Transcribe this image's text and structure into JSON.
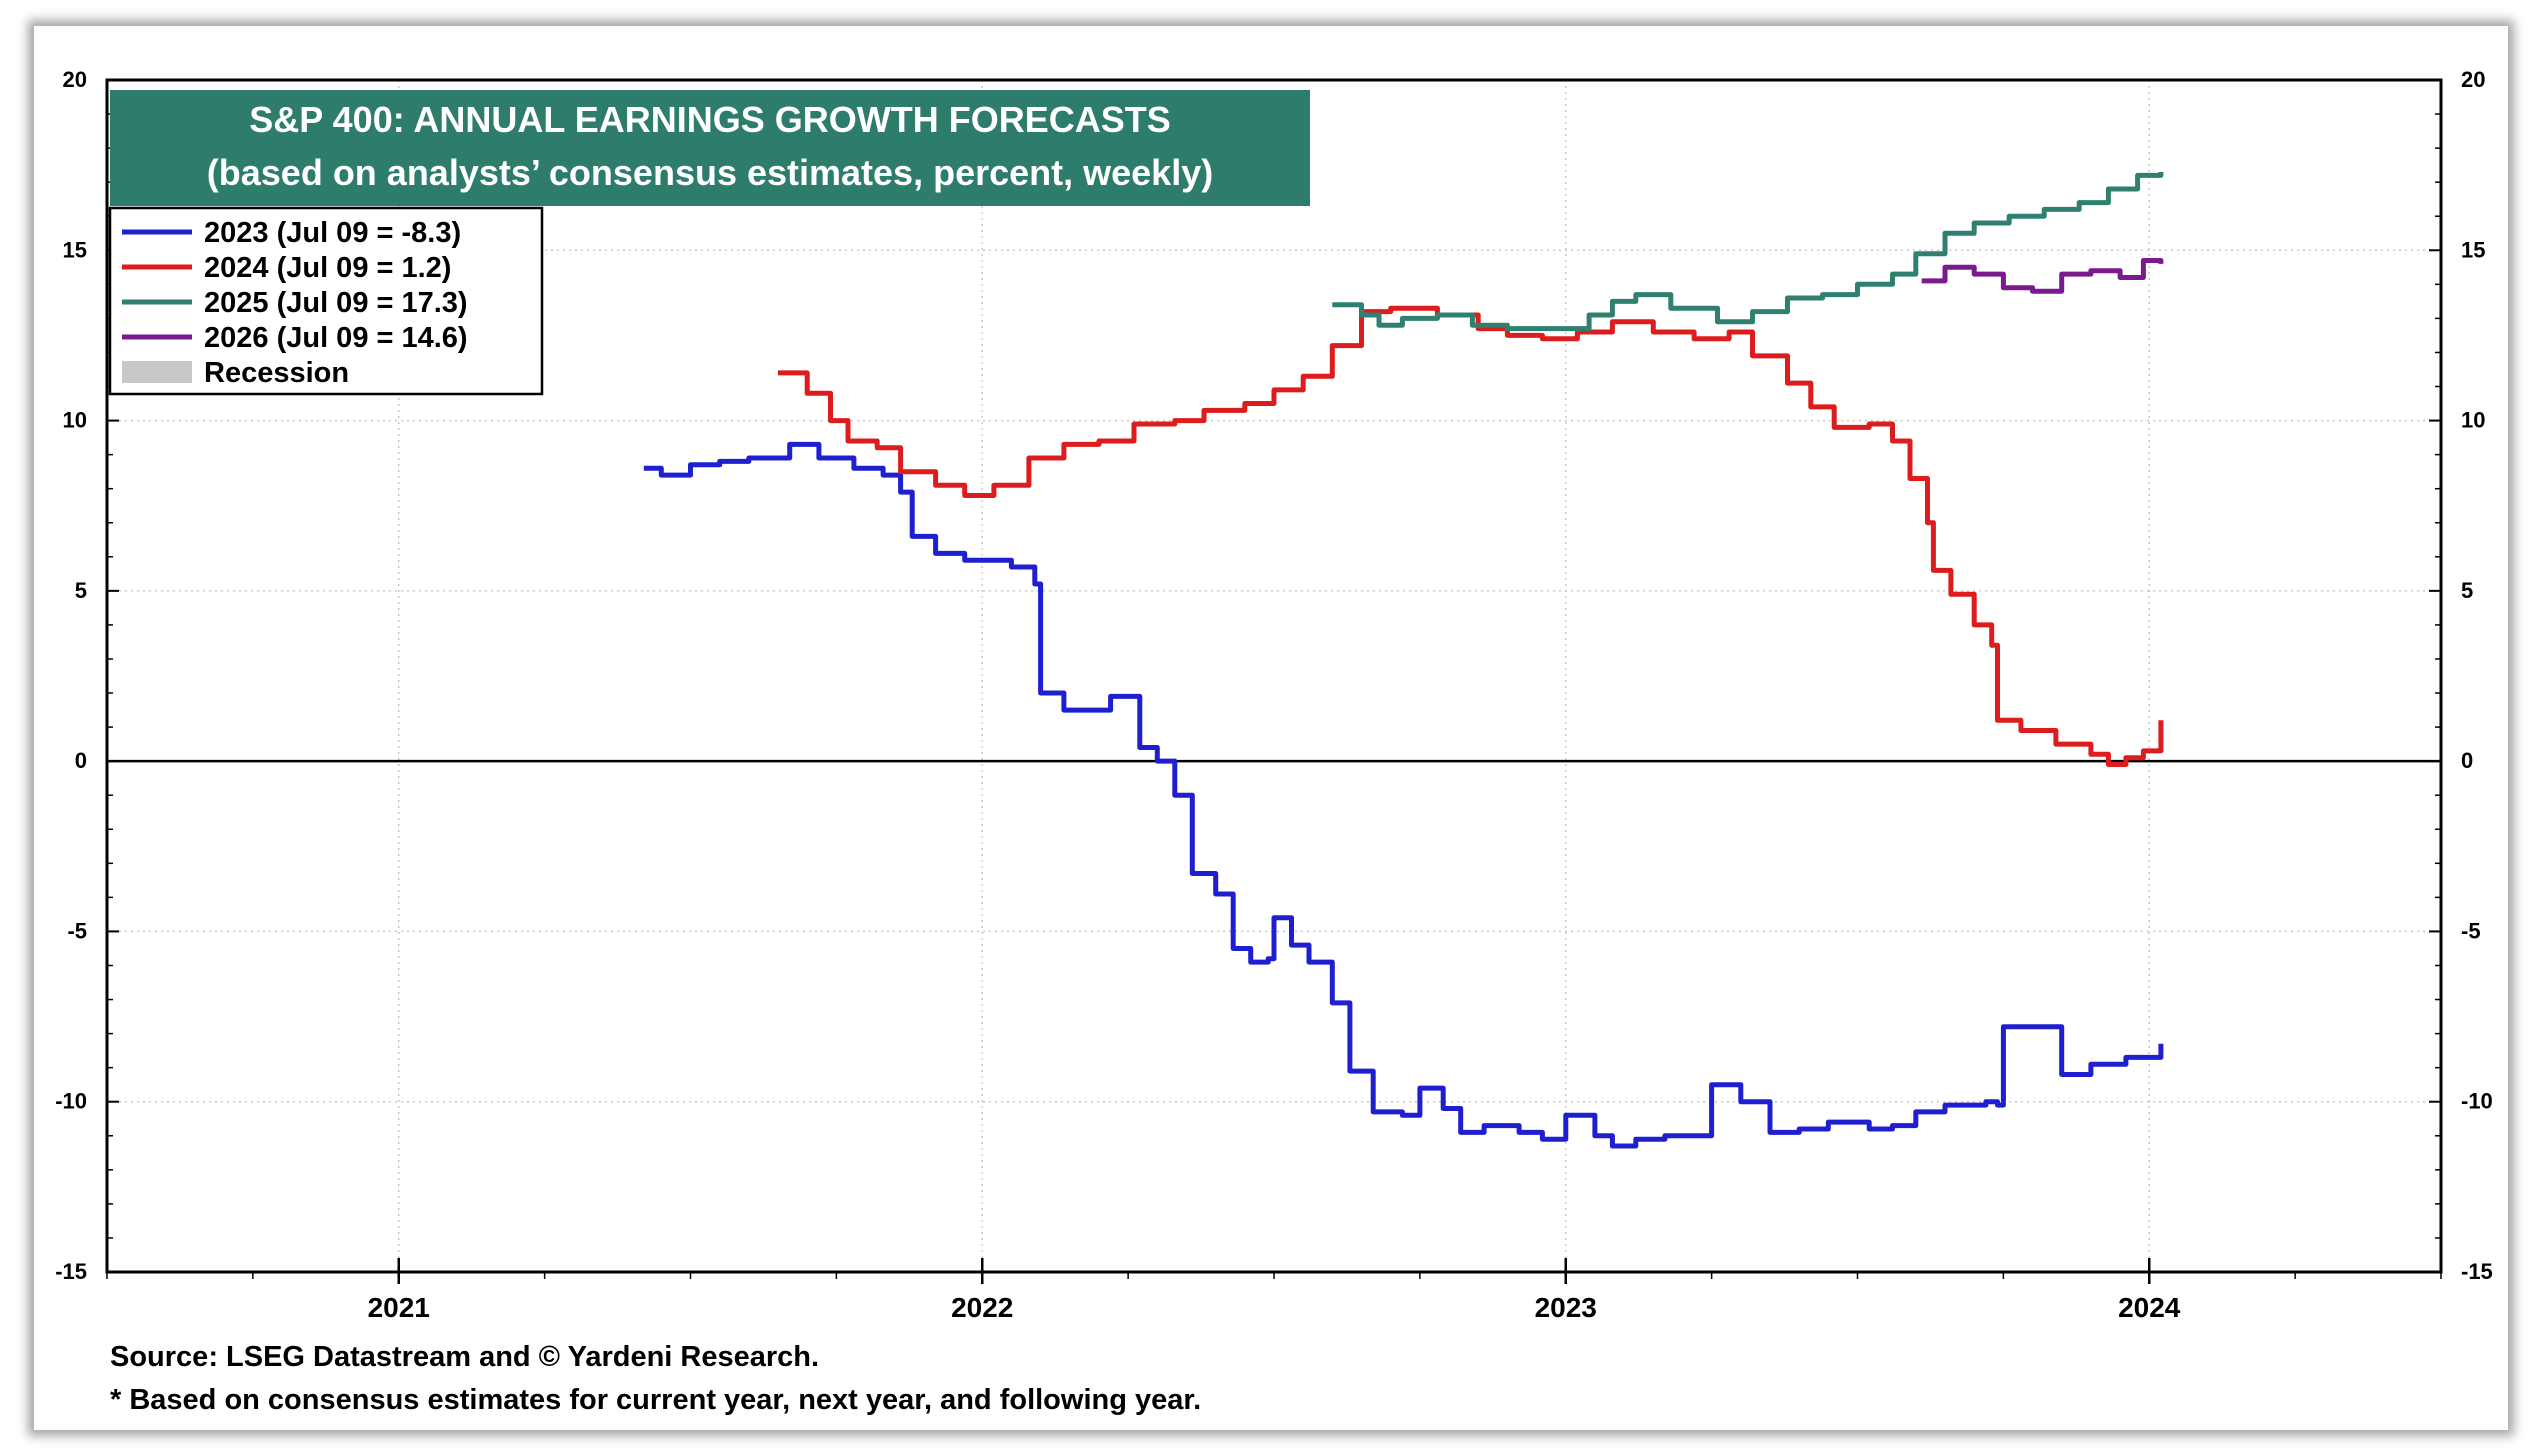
{
  "chart_data": {
    "type": "line",
    "title": "S&P 400: ANNUAL EARNINGS GROWTH FORECASTS",
    "subtitle": "(based on analysts’ consensus estimates, percent, weekly)",
    "ylim": [
      -15,
      20
    ],
    "yticks": [
      -15,
      -10,
      -5,
      0,
      5,
      10,
      15,
      20
    ],
    "ytick_labels": [
      "-15",
      "-10",
      "-5",
      "0",
      "5",
      "10",
      "15",
      "20"
    ],
    "xlim": [
      2020.5,
      2024.5
    ],
    "xticks": [
      2021,
      2022,
      2023,
      2024
    ],
    "xtick_labels": [
      "2021",
      "2022",
      "2023",
      "2024"
    ],
    "grid": true,
    "legend_position": "top-left",
    "series": [
      {
        "name": "2023 (Jul 09 = -8.3)",
        "color": "#1f1fcf",
        "points": [
          [
            2021.42,
            8.6
          ],
          [
            2021.45,
            8.4
          ],
          [
            2021.5,
            8.7
          ],
          [
            2021.55,
            8.8
          ],
          [
            2021.6,
            8.9
          ],
          [
            2021.67,
            9.3
          ],
          [
            2021.72,
            8.9
          ],
          [
            2021.78,
            8.6
          ],
          [
            2021.83,
            8.4
          ],
          [
            2021.86,
            7.9
          ],
          [
            2021.88,
            6.6
          ],
          [
            2021.92,
            6.1
          ],
          [
            2021.97,
            5.9
          ],
          [
            2022.05,
            5.7
          ],
          [
            2022.09,
            5.2
          ],
          [
            2022.1,
            2.0
          ],
          [
            2022.14,
            1.5
          ],
          [
            2022.2,
            1.5
          ],
          [
            2022.22,
            1.9
          ],
          [
            2022.26,
            1.9
          ],
          [
            2022.27,
            0.4
          ],
          [
            2022.3,
            0.0
          ],
          [
            2022.33,
            -1.0
          ],
          [
            2022.36,
            -3.3
          ],
          [
            2022.4,
            -3.9
          ],
          [
            2022.43,
            -5.5
          ],
          [
            2022.46,
            -5.9
          ],
          [
            2022.49,
            -5.8
          ],
          [
            2022.5,
            -4.6
          ],
          [
            2022.53,
            -5.4
          ],
          [
            2022.56,
            -5.9
          ],
          [
            2022.6,
            -7.1
          ],
          [
            2022.63,
            -9.1
          ],
          [
            2022.67,
            -10.3
          ],
          [
            2022.72,
            -10.4
          ],
          [
            2022.75,
            -9.6
          ],
          [
            2022.79,
            -10.2
          ],
          [
            2022.82,
            -10.9
          ],
          [
            2022.86,
            -10.7
          ],
          [
            2022.92,
            -10.9
          ],
          [
            2022.96,
            -11.1
          ],
          [
            2023.0,
            -10.4
          ],
          [
            2023.05,
            -11.0
          ],
          [
            2023.08,
            -11.3
          ],
          [
            2023.12,
            -11.1
          ],
          [
            2023.17,
            -11.0
          ],
          [
            2023.24,
            -11.0
          ],
          [
            2023.25,
            -9.5
          ],
          [
            2023.3,
            -10.0
          ],
          [
            2023.35,
            -10.9
          ],
          [
            2023.4,
            -10.8
          ],
          [
            2023.45,
            -10.6
          ],
          [
            2023.52,
            -10.8
          ],
          [
            2023.56,
            -10.7
          ],
          [
            2023.6,
            -10.3
          ],
          [
            2023.65,
            -10.1
          ],
          [
            2023.72,
            -10.0
          ],
          [
            2023.74,
            -10.1
          ],
          [
            2023.75,
            -7.8
          ],
          [
            2023.84,
            -7.8
          ],
          [
            2023.85,
            -9.2
          ],
          [
            2023.9,
            -8.9
          ],
          [
            2023.96,
            -8.7
          ],
          [
            2024.02,
            -8.3
          ]
        ]
      },
      {
        "name": "2024 (Jul 09 = 1.2)",
        "color": "#dd1d1d",
        "points": [
          [
            2021.65,
            11.4
          ],
          [
            2021.7,
            10.8
          ],
          [
            2021.74,
            10.0
          ],
          [
            2021.77,
            9.4
          ],
          [
            2021.82,
            9.2
          ],
          [
            2021.86,
            8.5
          ],
          [
            2021.92,
            8.1
          ],
          [
            2021.97,
            7.8
          ],
          [
            2022.02,
            8.1
          ],
          [
            2022.08,
            8.9
          ],
          [
            2022.14,
            9.3
          ],
          [
            2022.2,
            9.4
          ],
          [
            2022.26,
            9.9
          ],
          [
            2022.33,
            10.0
          ],
          [
            2022.38,
            10.3
          ],
          [
            2022.45,
            10.5
          ],
          [
            2022.5,
            10.9
          ],
          [
            2022.55,
            11.3
          ],
          [
            2022.6,
            12.2
          ],
          [
            2022.65,
            13.2
          ],
          [
            2022.7,
            13.3
          ],
          [
            2022.78,
            13.1
          ],
          [
            2022.85,
            12.7
          ],
          [
            2022.9,
            12.5
          ],
          [
            2022.96,
            12.4
          ],
          [
            2023.02,
            12.6
          ],
          [
            2023.08,
            12.9
          ],
          [
            2023.15,
            12.6
          ],
          [
            2023.22,
            12.4
          ],
          [
            2023.28,
            12.6
          ],
          [
            2023.32,
            11.9
          ],
          [
            2023.38,
            11.1
          ],
          [
            2023.42,
            10.4
          ],
          [
            2023.46,
            9.8
          ],
          [
            2023.52,
            9.9
          ],
          [
            2023.56,
            9.4
          ],
          [
            2023.59,
            8.3
          ],
          [
            2023.62,
            7.0
          ],
          [
            2023.63,
            5.6
          ],
          [
            2023.66,
            4.9
          ],
          [
            2023.7,
            4.0
          ],
          [
            2023.73,
            3.4
          ],
          [
            2023.74,
            1.2
          ],
          [
            2023.78,
            0.9
          ],
          [
            2023.84,
            0.5
          ],
          [
            2023.9,
            0.2
          ],
          [
            2023.93,
            -0.1
          ],
          [
            2023.96,
            0.1
          ],
          [
            2023.99,
            0.3
          ],
          [
            2024.02,
            1.2
          ]
        ]
      },
      {
        "name": "2025 (Jul 09 = 17.3)",
        "color": "#2f8070",
        "points": [
          [
            2022.6,
            13.4
          ],
          [
            2022.65,
            13.1
          ],
          [
            2022.68,
            12.8
          ],
          [
            2022.72,
            13.0
          ],
          [
            2022.78,
            13.1
          ],
          [
            2022.84,
            12.8
          ],
          [
            2022.9,
            12.7
          ],
          [
            2022.98,
            12.7
          ],
          [
            2023.04,
            13.1
          ],
          [
            2023.08,
            13.5
          ],
          [
            2023.12,
            13.7
          ],
          [
            2023.18,
            13.3
          ],
          [
            2023.26,
            12.9
          ],
          [
            2023.32,
            13.2
          ],
          [
            2023.38,
            13.6
          ],
          [
            2023.44,
            13.7
          ],
          [
            2023.5,
            14.0
          ],
          [
            2023.56,
            14.3
          ],
          [
            2023.6,
            14.9
          ],
          [
            2023.65,
            15.5
          ],
          [
            2023.7,
            15.8
          ],
          [
            2023.76,
            16.0
          ],
          [
            2023.82,
            16.2
          ],
          [
            2023.88,
            16.4
          ],
          [
            2023.93,
            16.8
          ],
          [
            2023.98,
            17.2
          ],
          [
            2024.02,
            17.3
          ]
        ]
      },
      {
        "name": "2026 (Jul 09 = 14.6)",
        "color": "#7a1a8c",
        "points": [
          [
            2023.61,
            14.1
          ],
          [
            2023.65,
            14.5
          ],
          [
            2023.7,
            14.3
          ],
          [
            2023.75,
            13.9
          ],
          [
            2023.8,
            13.8
          ],
          [
            2023.85,
            14.3
          ],
          [
            2023.9,
            14.4
          ],
          [
            2023.95,
            14.2
          ],
          [
            2023.99,
            14.7
          ],
          [
            2024.02,
            14.6
          ]
        ]
      }
    ],
    "legend_extra": {
      "name": "Recession",
      "color": "#c8c8c8"
    }
  },
  "footer": {
    "source": "Source: LSEG Datastream and © Yardeni Research.",
    "note": "* Based on consensus estimates for current year, next year, and following year."
  }
}
